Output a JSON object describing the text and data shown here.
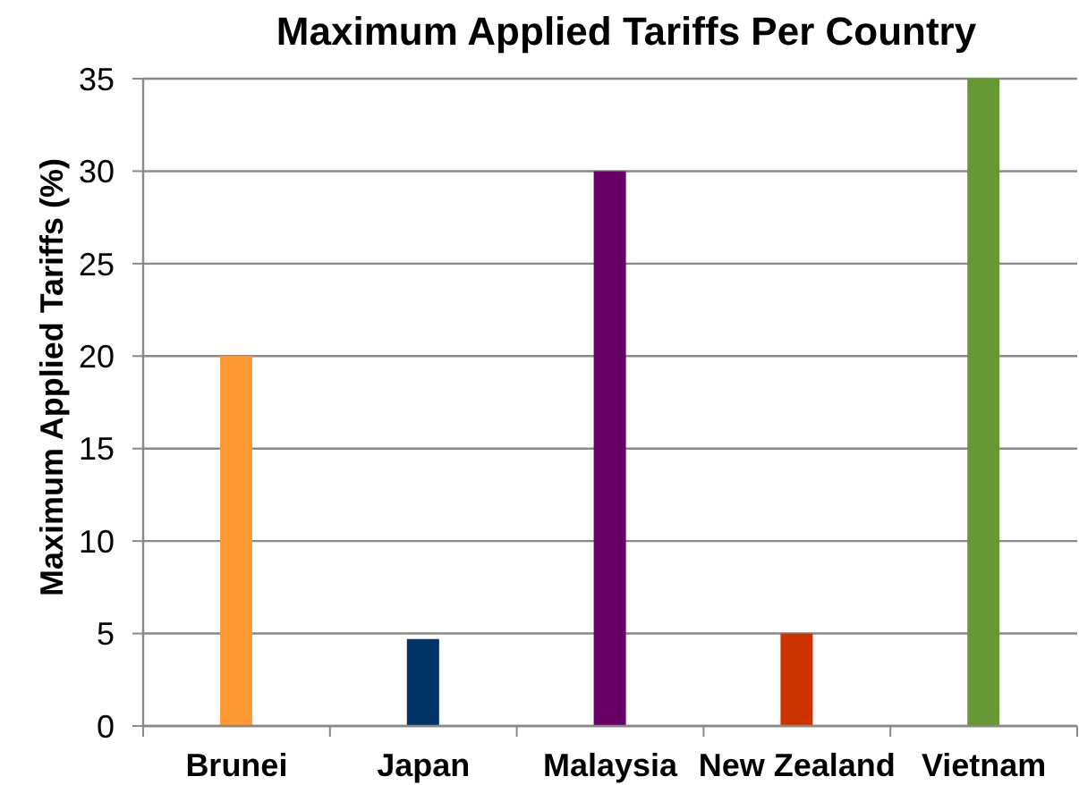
{
  "chart_data": {
    "type": "bar",
    "title": "Maximum Applied Tariffs Per Country",
    "ylabel": "Maximum Applied Tariffs (%)",
    "categories": [
      "Brunei",
      "Japan",
      "Malaysia",
      "New Zealand",
      "Vietnam"
    ],
    "values": [
      20,
      4.7,
      30,
      5,
      35
    ],
    "colors": [
      "#ff9933",
      "#003366",
      "#660066",
      "#cc3300",
      "#669933"
    ],
    "ylim": [
      0,
      35
    ],
    "yticks": [
      0,
      5,
      10,
      15,
      20,
      25,
      30,
      35
    ],
    "grid": "y"
  }
}
